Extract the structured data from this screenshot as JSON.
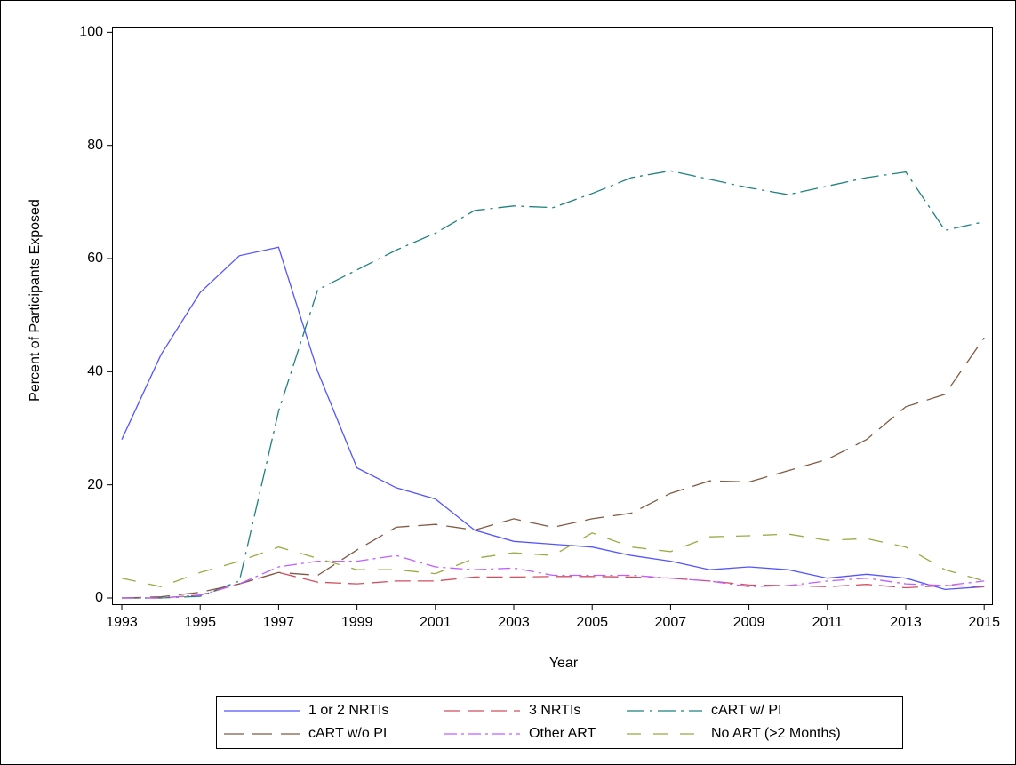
{
  "chart_data": {
    "type": "line",
    "x_label": "Year",
    "y_label": "Percent of Participants Exposed",
    "x": [
      1993,
      1994,
      1995,
      1996,
      1997,
      1998,
      1999,
      2000,
      2001,
      2002,
      2003,
      2004,
      2005,
      2006,
      2007,
      2008,
      2009,
      2010,
      2011,
      2012,
      2013,
      2014,
      2015
    ],
    "xlim": [
      1992.75,
      2015.2
    ],
    "xticks": [
      1993,
      1995,
      1997,
      1999,
      2001,
      2003,
      2005,
      2007,
      2009,
      2011,
      2013,
      2015
    ],
    "ylim": [
      -1.1,
      101
    ],
    "yticks": [
      0,
      20,
      40,
      60,
      80,
      100
    ],
    "series": [
      {
        "name": "1 or 2 NRTIs",
        "color": "#5555ff",
        "values": [
          28,
          43,
          54,
          60.5,
          62,
          40,
          23,
          19.5,
          17.5,
          12,
          10,
          9.5,
          9,
          7.5,
          6.5,
          5,
          5.5,
          5,
          3.5,
          4.2,
          3.5,
          1.5,
          2
        ]
      },
      {
        "name": "3 NRTIs",
        "color": "#d04f60",
        "values": [
          0,
          0,
          0.5,
          2.5,
          4.5,
          2.8,
          2.5,
          3,
          3,
          3.7,
          3.7,
          3.8,
          3.8,
          3.7,
          3.5,
          3,
          2.3,
          2.2,
          2,
          2.4,
          1.8,
          2.2,
          2
        ]
      },
      {
        "name": "cART w/ PI",
        "color": "#1f8080",
        "values": [
          0,
          0,
          0.3,
          3,
          33,
          54.5,
          58,
          61.5,
          64.5,
          68.5,
          69.3,
          69,
          71.5,
          74.3,
          75.5,
          74,
          72.5,
          71.3,
          72.8,
          74.3,
          75.3,
          65,
          66.5
        ]
      },
      {
        "name": "cART w/o PI",
        "color": "#7f5a44",
        "values": [
          0,
          0.2,
          1,
          2.5,
          4.5,
          4,
          8.5,
          12.5,
          13,
          12,
          14,
          12.5,
          14,
          15,
          18.5,
          20.7,
          20.5,
          22.5,
          24.5,
          28,
          33.8,
          36,
          46
        ]
      },
      {
        "name": "Other ART",
        "color": "#bf5fff",
        "values": [
          0,
          0,
          0.5,
          2.5,
          5.5,
          6.5,
          6.5,
          7.5,
          5.5,
          5,
          5.3,
          4,
          4,
          4,
          3.5,
          3,
          2,
          2.2,
          3,
          3.5,
          2.5,
          2.2,
          3
        ]
      },
      {
        "name": "No ART (>2 Months)",
        "color": "#99aa44",
        "values": [
          3.5,
          2,
          4.5,
          6.5,
          9,
          7,
          5,
          5,
          4.3,
          7,
          8,
          7.5,
          11.5,
          9,
          8.2,
          10.8,
          11,
          11.3,
          10.2,
          10.5,
          9,
          5,
          3
        ]
      }
    ]
  }
}
